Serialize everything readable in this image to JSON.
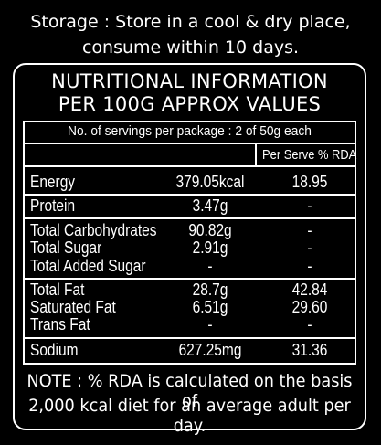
{
  "storage": {
    "line1": "Storage : Store in a cool & dry place,",
    "line2": "consume within 10 days."
  },
  "panel": {
    "title_line1": "NUTRITIONAL INFORMATION",
    "title_line2": "PER 100G APPROX VALUES",
    "servings": "No. of servings per package : 2 of 50g each",
    "rda_header": "Per Serve % RDA",
    "rows": [
      {
        "name": "Energy",
        "amount": "379.05kcal",
        "rda": "18.95"
      },
      {
        "name": "Protein",
        "amount": "3.47g",
        "rda": "-"
      },
      {
        "name": "Total Carbohydrates",
        "amount": "90.82g",
        "rda": "-"
      },
      {
        "name": "Total Sugar",
        "amount": "2.91g",
        "rda": "-"
      },
      {
        "name": "Total Added Sugar",
        "amount": "-",
        "rda": "-"
      },
      {
        "name": "Total Fat",
        "amount": "28.7g",
        "rda": "42.84"
      },
      {
        "name": "Saturated Fat",
        "amount": "6.51g",
        "rda": "29.60"
      },
      {
        "name": "Trans Fat",
        "amount": "-",
        "rda": "-"
      },
      {
        "name": "Sodium",
        "amount": "627.25mg",
        "rda": "31.36"
      }
    ],
    "note_line1": "NOTE : % RDA is calculated on the basis of",
    "note_line2": "2,000 kcal diet for an average adult per day."
  }
}
